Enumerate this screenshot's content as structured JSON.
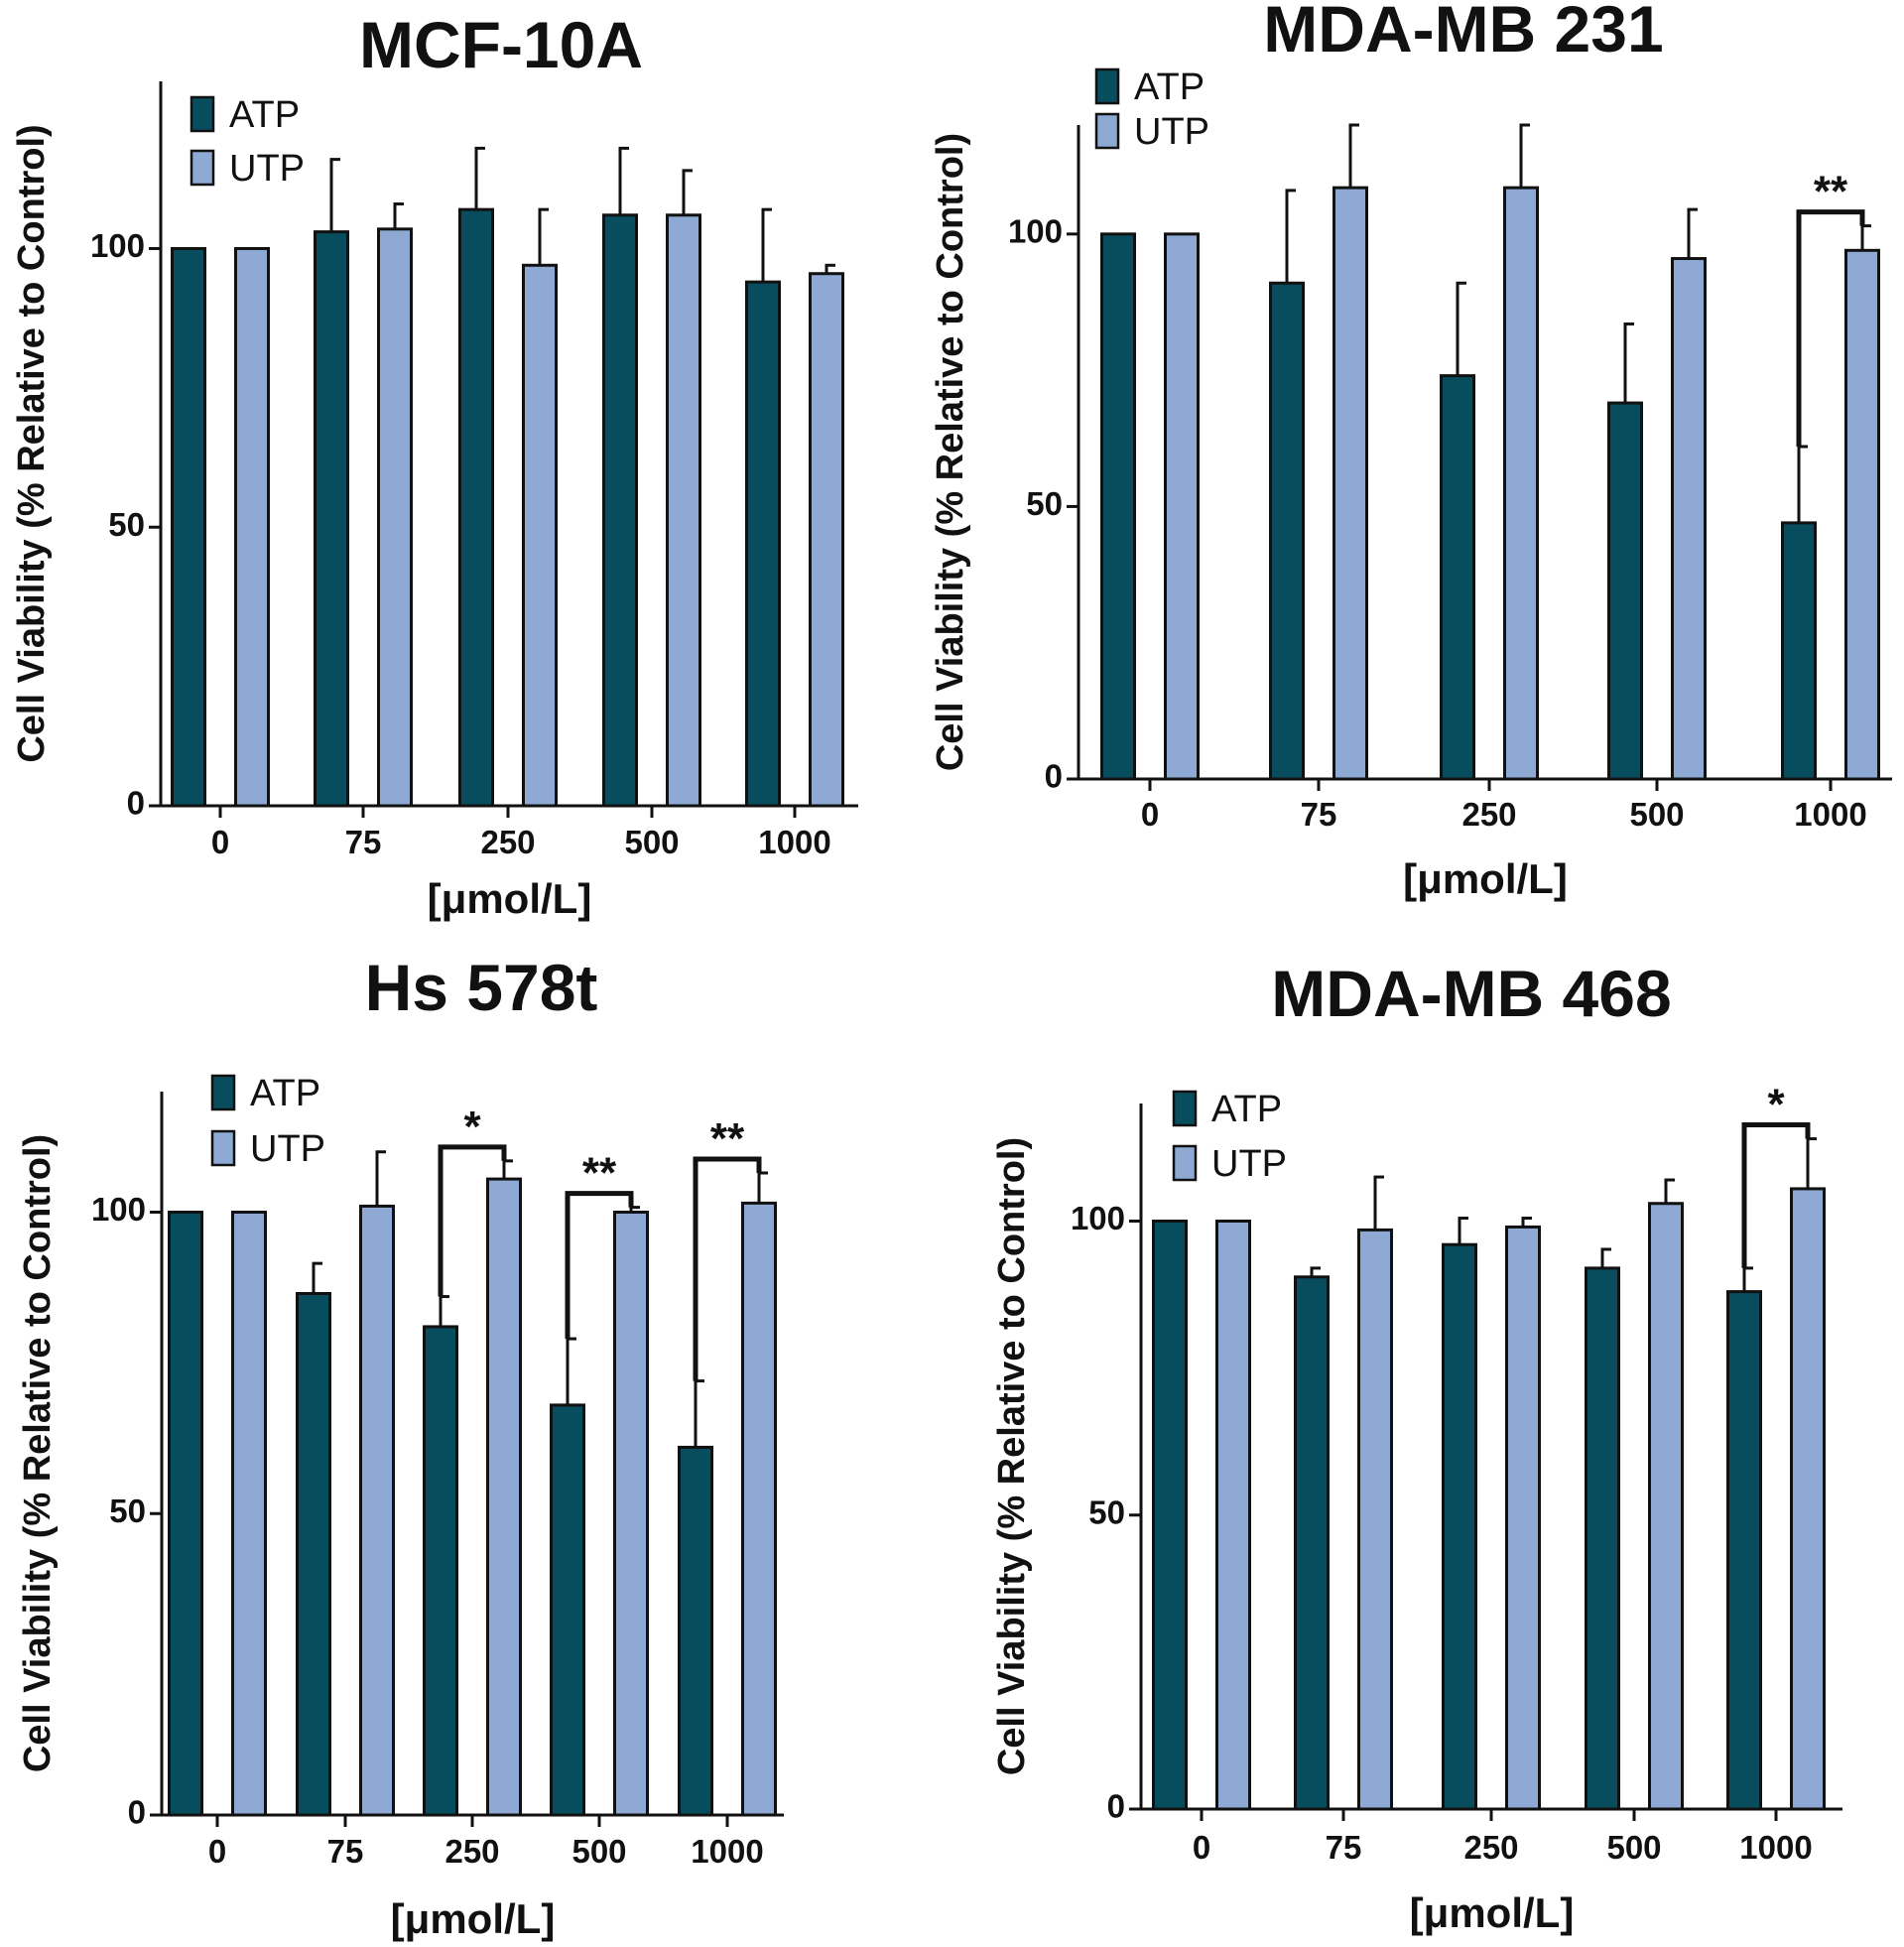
{
  "colors": {
    "atp": "#084d5e",
    "utp": "#8eaad4",
    "axis": "#111111",
    "background": "#ffffff"
  },
  "chart_data": [
    {
      "type": "bar",
      "title": "MCF-10A",
      "xlabel": "[μmol/L]",
      "ylabel": "Cell Viability (% Relative to Control)",
      "ylim": [
        0,
        130
      ],
      "yticks": [
        0,
        50,
        100
      ],
      "categories": [
        "0",
        "75",
        "250",
        "500",
        "1000"
      ],
      "legend": "top-left",
      "series": [
        {
          "name": "ATP",
          "values": [
            100,
            103,
            107,
            106,
            94
          ],
          "errors": [
            0,
            13,
            11,
            12,
            13
          ]
        },
        {
          "name": "UTP",
          "values": [
            100,
            103.5,
            97,
            106,
            95.5
          ],
          "errors": [
            0,
            4.5,
            10,
            8,
            1.5
          ]
        }
      ],
      "significance": []
    },
    {
      "type": "bar",
      "title": "MDA-MB 231",
      "xlabel": "[μmol/L]",
      "ylabel": "Cell Viability (% Relative to Control)",
      "ylim": [
        0,
        120
      ],
      "yticks": [
        0,
        50,
        100
      ],
      "categories": [
        "0",
        "75",
        "250",
        "500",
        "1000"
      ],
      "legend": "top-left",
      "series": [
        {
          "name": "ATP",
          "values": [
            100,
            91,
            74,
            69,
            47
          ],
          "errors": [
            0,
            17,
            17,
            14.5,
            14
          ]
        },
        {
          "name": "UTP",
          "values": [
            100,
            108.5,
            108.5,
            95.5,
            97
          ],
          "errors": [
            0,
            11.5,
            11.5,
            9,
            4.5
          ]
        }
      ],
      "significance": [
        {
          "category": "1000",
          "label": "**"
        }
      ]
    },
    {
      "type": "bar",
      "title": "Hs 578t",
      "xlabel": "[μmol/L]",
      "ylabel": "Cell Viability (% Relative to Control)",
      "ylim": [
        0,
        120
      ],
      "yticks": [
        0,
        50,
        100
      ],
      "categories": [
        "0",
        "75",
        "250",
        "500",
        "1000"
      ],
      "legend": "top-left",
      "series": [
        {
          "name": "ATP",
          "values": [
            100,
            86.5,
            81,
            68,
            61
          ],
          "errors": [
            0,
            5,
            5,
            11,
            11
          ]
        },
        {
          "name": "UTP",
          "values": [
            100,
            101,
            105.5,
            100,
            101.5
          ],
          "errors": [
            0,
            9,
            3,
            0.8,
            5
          ]
        }
      ],
      "significance": [
        {
          "category": "250",
          "label": "*"
        },
        {
          "category": "500",
          "label": "**"
        },
        {
          "category": "1000",
          "label": "**"
        }
      ]
    },
    {
      "type": "bar",
      "title": "MDA-MB 468",
      "xlabel": "[μmol/L]",
      "ylabel": "Cell Viability (% Relative to Control)",
      "ylim": [
        0,
        120
      ],
      "yticks": [
        0,
        50,
        100
      ],
      "categories": [
        "0",
        "75",
        "250",
        "500",
        "1000"
      ],
      "legend": "top-left",
      "series": [
        {
          "name": "ATP",
          "values": [
            100,
            90.5,
            96,
            92,
            88
          ],
          "errors": [
            0,
            1.5,
            4.5,
            3.2,
            4
          ]
        },
        {
          "name": "UTP",
          "values": [
            100,
            98.5,
            99,
            103,
            105.5
          ],
          "errors": [
            0,
            9,
            1.5,
            4,
            8.5
          ]
        }
      ],
      "significance": [
        {
          "category": "1000",
          "label": "*"
        }
      ]
    }
  ]
}
